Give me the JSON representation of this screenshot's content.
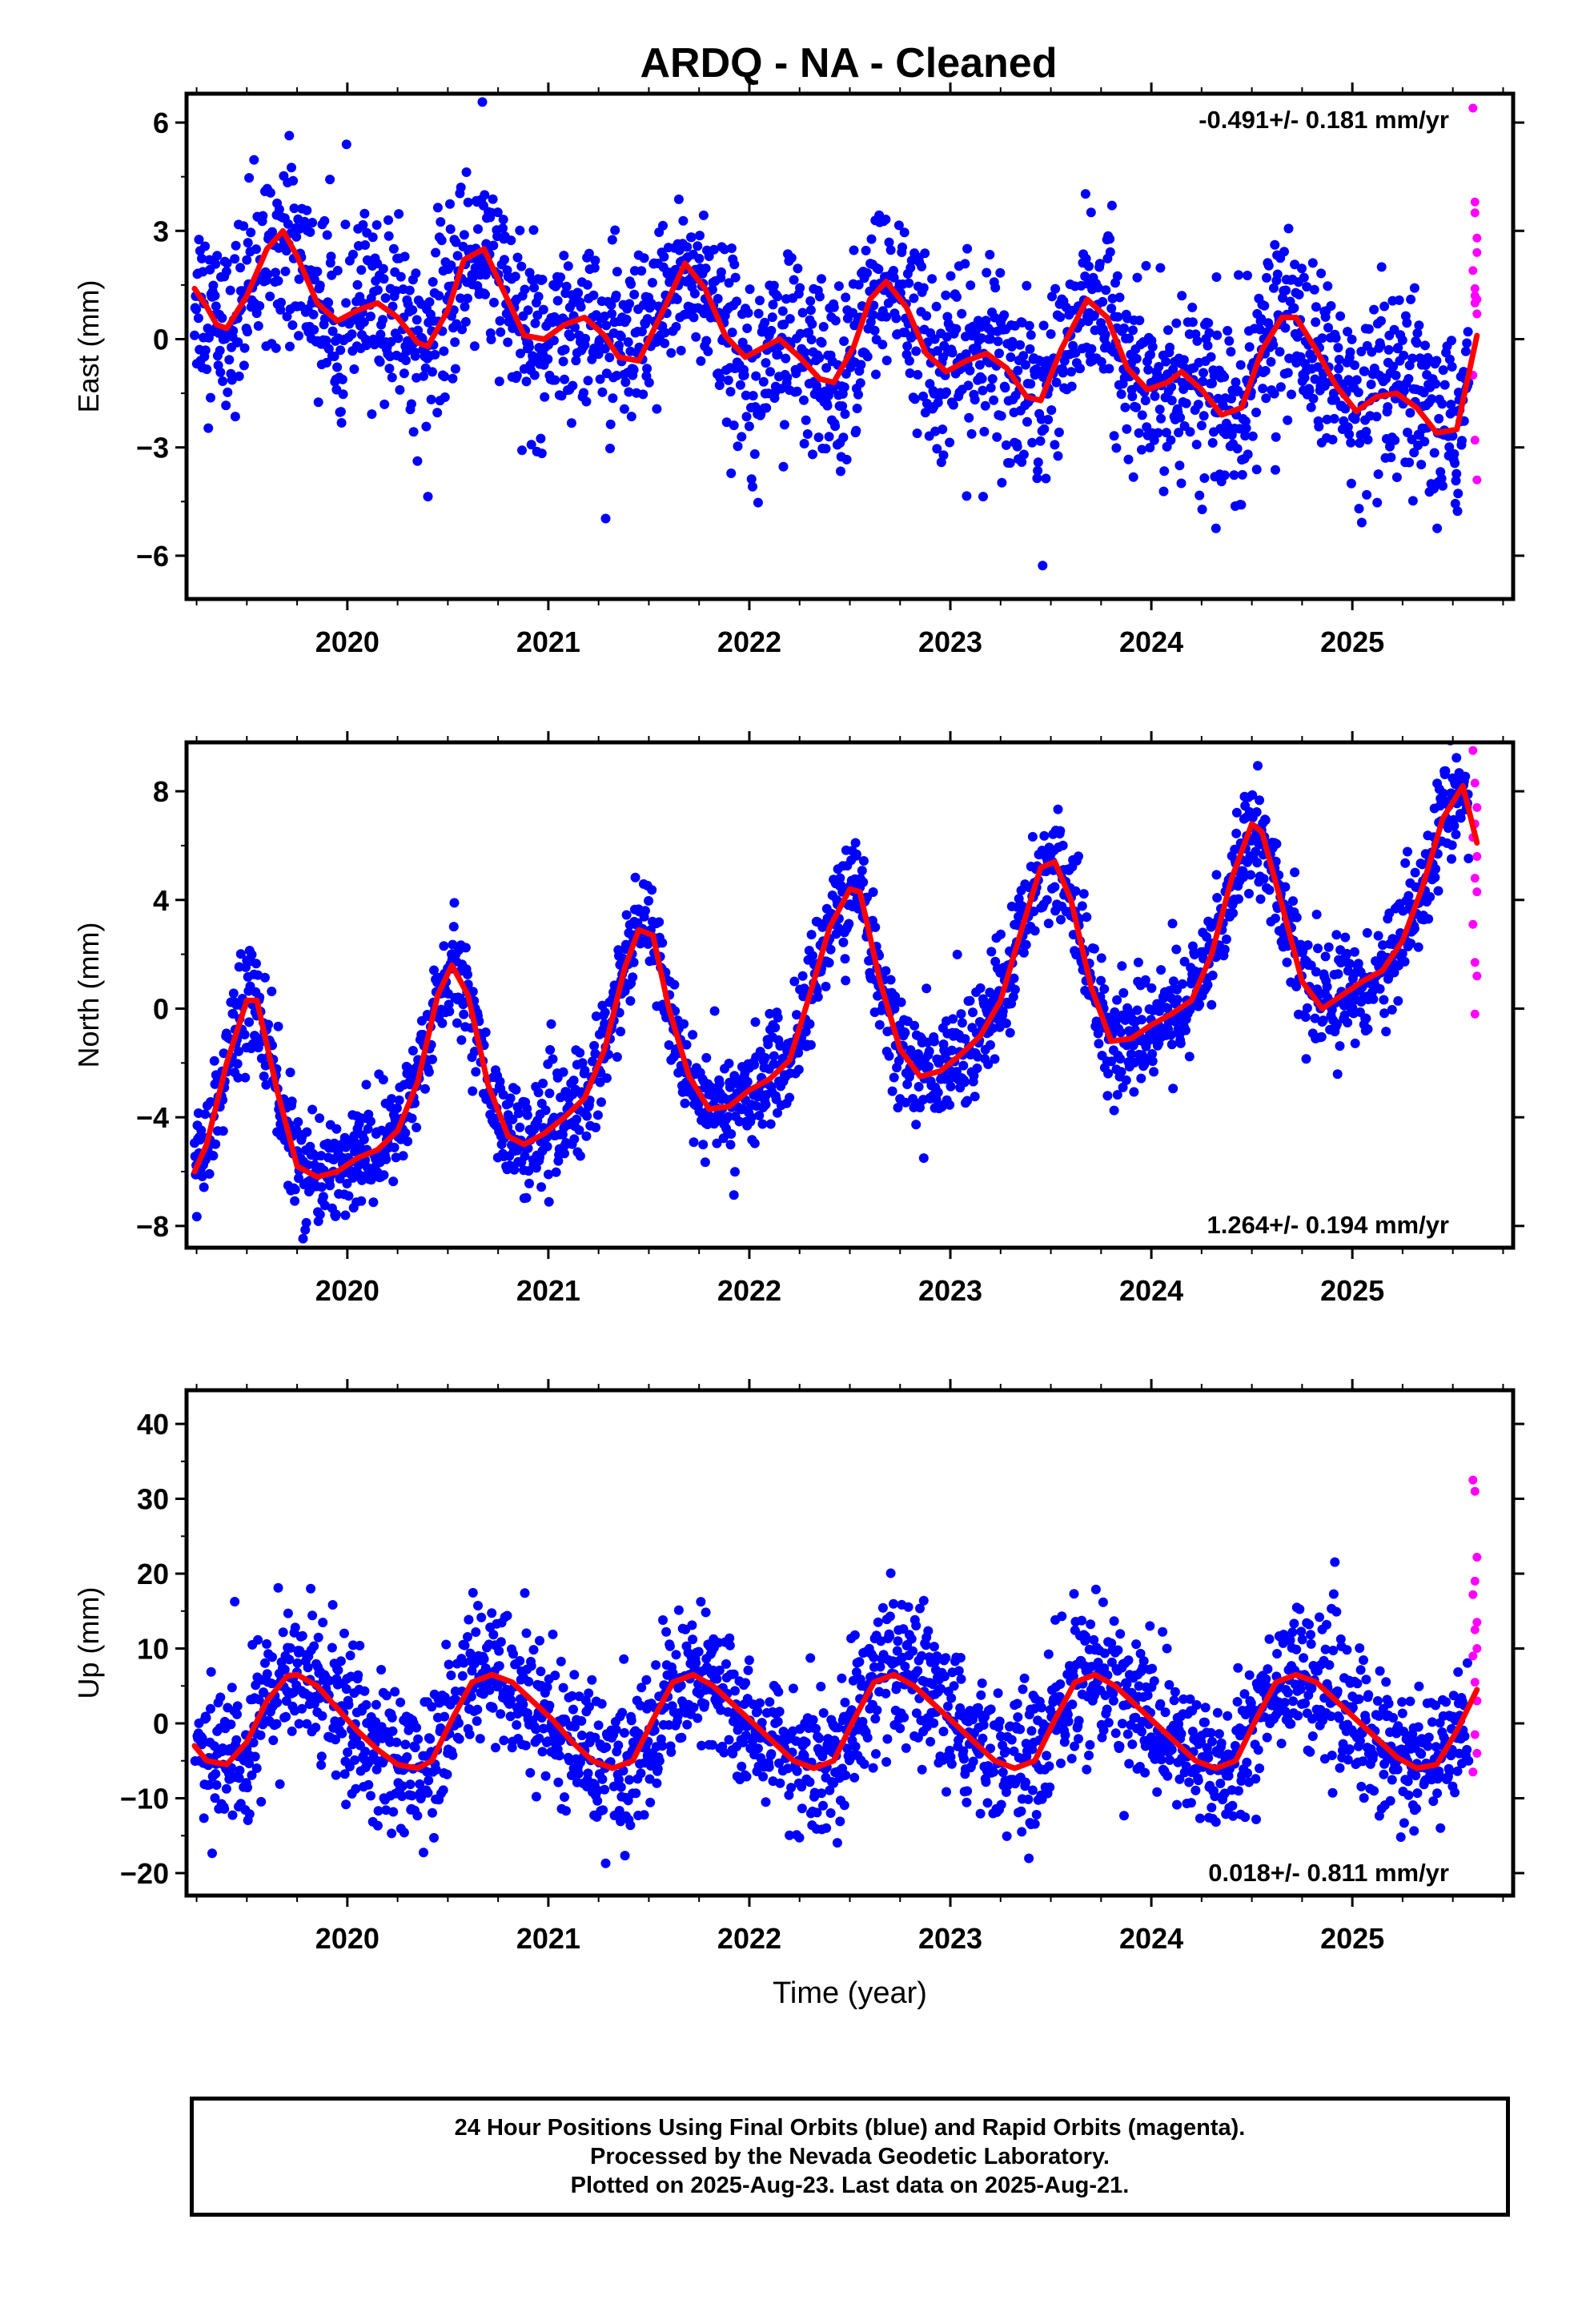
{
  "title": "ARDQ  - NA - Cleaned",
  "footer": {
    "line1": "24 Hour Positions Using Final Orbits (blue) and Rapid Orbits (magenta).",
    "line2": "Processed by the Nevada Geodetic Laboratory.",
    "line3": "Plotted on 2025-Aug-23. Last data on 2025-Aug-21."
  },
  "colors": {
    "final_orbits": "#0000ff",
    "rapid_orbits": "#ff00ff",
    "model_fit": "#ff0000"
  },
  "chart_data": [
    {
      "type": "scatter",
      "ylabel": "East (mm)",
      "xlabel": "",
      "xlim": [
        2019.2,
        2025.8
      ],
      "ylim": [
        -7.2,
        6.8
      ],
      "yticks": [
        -6,
        -3,
        0,
        3,
        6
      ],
      "xticks": [
        2020,
        2021,
        2022,
        2023,
        2024,
        2025
      ],
      "rate_label": "-0.491+/- 0.181 mm/yr",
      "rate_label_position": "top-right",
      "series": [
        {
          "name": "",
          "color": "#ff0000",
          "style": "line",
          "x": [
            2019.24,
            2019.3,
            2019.35,
            2019.4,
            2019.5,
            2019.6,
            2019.68,
            2019.75,
            2019.85,
            2019.95,
            2020.05,
            2020.15,
            2020.25,
            2020.35,
            2020.4,
            2020.5,
            2020.58,
            2020.68,
            2020.78,
            2020.88,
            2020.98,
            2021.08,
            2021.18,
            2021.28,
            2021.35,
            2021.45,
            2021.58,
            2021.68,
            2021.78,
            2021.88,
            2021.98,
            2022.08,
            2022.15,
            2022.25,
            2022.35,
            2022.42,
            2022.52,
            2022.6,
            2022.68,
            2022.78,
            2022.88,
            2022.98,
            2023.08,
            2023.18,
            2023.28,
            2023.38,
            2023.45,
            2023.55,
            2023.68,
            2023.78,
            2023.88,
            2023.98,
            2024.08,
            2024.15,
            2024.25,
            2024.35,
            2024.45,
            2024.55,
            2024.65,
            2024.72,
            2024.82,
            2024.92,
            2025.02,
            2025.12,
            2025.22,
            2025.32,
            2025.42,
            2025.52,
            2025.62
          ],
          "y": [
            1.4,
            0.9,
            0.4,
            0.3,
            1.2,
            2.5,
            3.0,
            2.3,
            1.0,
            0.5,
            0.8,
            1.0,
            0.6,
            -0.1,
            -0.2,
            0.8,
            2.2,
            2.5,
            1.3,
            0.1,
            0.0,
            0.4,
            0.6,
            0.1,
            -0.5,
            -0.6,
            0.9,
            2.1,
            1.4,
            0.1,
            -0.5,
            -0.2,
            0.0,
            -0.5,
            -1.1,
            -1.2,
            -0.2,
            1.1,
            1.6,
            0.9,
            -0.4,
            -0.9,
            -0.6,
            -0.4,
            -0.8,
            -1.6,
            -1.7,
            -0.3,
            1.1,
            0.6,
            -0.8,
            -1.4,
            -1.2,
            -0.9,
            -1.4,
            -2.1,
            -1.9,
            -0.3,
            0.6,
            0.6,
            -0.3,
            -1.3,
            -2.0,
            -1.6,
            -1.5,
            -1.9,
            -2.6,
            -2.5,
            0.1
          ]
        },
        {
          "name": "",
          "color": "#ff00ff",
          "style": "points",
          "x": [
            2025.6,
            2025.61,
            2025.61,
            2025.62,
            2025.62,
            2025.6,
            2025.61,
            2025.62,
            2025.61,
            2025.62,
            2025.6,
            2025.61,
            2025.62,
            2025.61
          ],
          "y": [
            6.4,
            3.8,
            3.5,
            2.8,
            2.4,
            1.9,
            1.4,
            1.1,
            1.0,
            0.7,
            -1.0,
            -2.8,
            -3.9,
            1.2
          ]
        }
      ]
    },
    {
      "type": "scatter",
      "ylabel": "North (mm)",
      "xlabel": "",
      "xlim": [
        2019.2,
        2025.8
      ],
      "ylim": [
        -8.8,
        9.8
      ],
      "yticks": [
        -8,
        -4,
        0,
        4,
        8
      ],
      "xticks": [
        2020,
        2021,
        2022,
        2023,
        2024,
        2025
      ],
      "rate_label": "1.264+/- 0.194 mm/yr",
      "rate_label_position": "bottom-right",
      "series": [
        {
          "name": "",
          "color": "#ff0000",
          "style": "line",
          "x": [
            2019.24,
            2019.3,
            2019.4,
            2019.5,
            2019.55,
            2019.65,
            2019.75,
            2019.85,
            2019.95,
            2020.05,
            2020.15,
            2020.25,
            2020.35,
            2020.45,
            2020.52,
            2020.6,
            2020.7,
            2020.8,
            2020.88,
            2020.98,
            2021.08,
            2021.18,
            2021.28,
            2021.38,
            2021.45,
            2021.52,
            2021.6,
            2021.7,
            2021.8,
            2021.9,
            2022.0,
            2022.1,
            2022.2,
            2022.3,
            2022.4,
            2022.5,
            2022.55,
            2022.65,
            2022.75,
            2022.85,
            2022.95,
            2023.05,
            2023.15,
            2023.25,
            2023.35,
            2023.45,
            2023.52,
            2023.6,
            2023.7,
            2023.8,
            2023.9,
            2024.0,
            2024.1,
            2024.2,
            2024.3,
            2024.4,
            2024.5,
            2024.55,
            2024.65,
            2024.75,
            2024.85,
            2024.95,
            2025.05,
            2025.15,
            2025.25,
            2025.35,
            2025.45,
            2025.55,
            2025.62
          ],
          "y": [
            -6.0,
            -5.0,
            -2.0,
            0.3,
            0.3,
            -3.0,
            -5.8,
            -6.2,
            -6.0,
            -5.5,
            -5.2,
            -4.5,
            -2.7,
            0.5,
            1.6,
            0.5,
            -2.8,
            -4.7,
            -5.0,
            -4.6,
            -4.0,
            -3.3,
            -1.5,
            1.5,
            2.9,
            2.7,
            0.0,
            -2.5,
            -3.7,
            -3.6,
            -3.0,
            -2.6,
            -1.9,
            0.5,
            3.0,
            4.4,
            4.3,
            1.0,
            -1.5,
            -2.5,
            -2.3,
            -1.7,
            -1.0,
            0.3,
            2.8,
            5.2,
            5.4,
            4.0,
            0.8,
            -1.2,
            -1.1,
            -0.6,
            -0.2,
            0.3,
            2.0,
            4.8,
            6.8,
            6.5,
            3.8,
            1.0,
            0.0,
            0.5,
            1.0,
            1.4,
            2.5,
            4.5,
            7.0,
            8.2,
            6.1
          ]
        },
        {
          "name": "",
          "color": "#ff00ff",
          "style": "points",
          "x": [
            2025.6,
            2025.61,
            2025.62,
            2025.61,
            2025.6,
            2025.62,
            2025.61,
            2025.62,
            2025.6,
            2025.61,
            2025.62,
            2025.61
          ],
          "y": [
            9.5,
            8.3,
            7.4,
            6.8,
            6.3,
            5.6,
            4.8,
            4.3,
            3.1,
            1.7,
            1.2,
            -0.2
          ]
        }
      ]
    },
    {
      "type": "scatter",
      "ylabel": "Up (mm)",
      "xlabel": "Time (year)",
      "xlim": [
        2019.2,
        2025.8
      ],
      "ylim": [
        -23,
        44.5
      ],
      "yticks": [
        -20,
        -10,
        0,
        10,
        20,
        30,
        40
      ],
      "xticks": [
        2020,
        2021,
        2022,
        2023,
        2024,
        2025
      ],
      "rate_label": "0.018+/- 0.811 mm/yr",
      "rate_label_position": "bottom-right",
      "series": [
        {
          "name": "",
          "color": "#ff0000",
          "style": "line",
          "x": [
            2019.24,
            2019.3,
            2019.4,
            2019.5,
            2019.6,
            2019.7,
            2019.75,
            2019.85,
            2019.95,
            2020.05,
            2020.15,
            2020.25,
            2020.35,
            2020.42,
            2020.52,
            2020.62,
            2020.72,
            2020.82,
            2020.92,
            2021.02,
            2021.12,
            2021.22,
            2021.32,
            2021.42,
            2021.52,
            2021.62,
            2021.72,
            2021.82,
            2021.92,
            2022.02,
            2022.12,
            2022.22,
            2022.32,
            2022.42,
            2022.52,
            2022.62,
            2022.72,
            2022.82,
            2022.92,
            2023.02,
            2023.12,
            2023.22,
            2023.32,
            2023.42,
            2023.52,
            2023.62,
            2023.72,
            2023.82,
            2023.92,
            2024.02,
            2024.12,
            2024.22,
            2024.32,
            2024.42,
            2024.52,
            2024.62,
            2024.72,
            2024.82,
            2024.92,
            2025.02,
            2025.12,
            2025.22,
            2025.32,
            2025.42,
            2025.52,
            2025.62
          ],
          "y": [
            -3.0,
            -5.0,
            -5.5,
            -2.5,
            3.0,
            6.3,
            6.5,
            5.0,
            2.0,
            -1.0,
            -3.5,
            -5.5,
            -6.0,
            -5.0,
            0.5,
            5.5,
            6.5,
            5.5,
            3.0,
            0.5,
            -2.5,
            -5.0,
            -6.0,
            -5.0,
            0.5,
            5.5,
            6.5,
            5.0,
            2.5,
            0.0,
            -2.5,
            -5.0,
            -6.0,
            -5.0,
            0.5,
            5.5,
            6.5,
            5.0,
            2.5,
            0.0,
            -2.5,
            -5.0,
            -6.0,
            -5.0,
            0.5,
            5.5,
            6.5,
            5.0,
            2.5,
            0.0,
            -2.5,
            -5.0,
            -6.0,
            -5.0,
            0.5,
            5.5,
            6.5,
            5.5,
            3.0,
            0.5,
            -2.0,
            -4.5,
            -6.0,
            -5.5,
            -1.0,
            4.5
          ]
        },
        {
          "name": "",
          "color": "#ff00ff",
          "style": "points",
          "x": [
            2025.6,
            2025.61,
            2025.62,
            2025.61,
            2025.6,
            2025.62,
            2025.61,
            2025.62,
            2025.6,
            2025.61,
            2025.62,
            2025.61,
            2025.62,
            2025.6
          ],
          "y": [
            32.5,
            31.0,
            22.2,
            19.0,
            17.2,
            13.5,
            12.5,
            10.0,
            9.0,
            5.5,
            3.0,
            -1.5,
            -4.0,
            -6.5
          ]
        }
      ]
    }
  ]
}
